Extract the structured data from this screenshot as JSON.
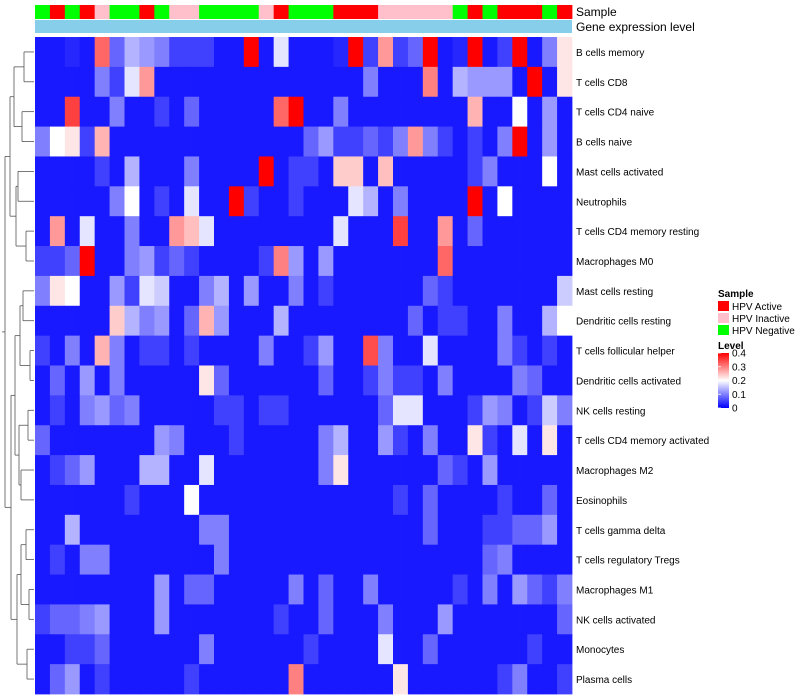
{
  "chart_data": {
    "type": "heatmap",
    "annotation_labels": {
      "sample": "Sample",
      "expression": "Gene expression level"
    },
    "legend": {
      "sample_title": "Sample",
      "sample_entries": [
        {
          "label": "HPV Active",
          "color": "#ff0000"
        },
        {
          "label": "HPV Inactive",
          "color": "#ffc0cb"
        },
        {
          "label": "HPV Negative",
          "color": "#00ff00"
        }
      ],
      "level_title": "Level",
      "level_ticks": [
        "0.4",
        "0.3",
        "0.2",
        "0.1",
        "0"
      ],
      "level_tick_values": [
        0.4,
        0.3,
        0.2,
        0.1,
        0
      ]
    },
    "color_scale": {
      "low": "#0000ff",
      "mid": "#ffffff",
      "high": "#ff0000",
      "min": 0,
      "mid_value": 0.2,
      "max": 0.4
    },
    "expression_bar_color": "#87ceeb",
    "sample_groups": [
      "N",
      "A",
      "N",
      "A",
      "P",
      "N",
      "N",
      "A",
      "N",
      "P",
      "P",
      "N",
      "N",
      "N",
      "N",
      "P",
      "A",
      "N",
      "N",
      "N",
      "A",
      "A",
      "A",
      "P",
      "P",
      "P",
      "P",
      "P",
      "N",
      "A",
      "N",
      "A",
      "A",
      "A",
      "N",
      "A"
    ],
    "group_colors": {
      "A": "#ff0000",
      "P": "#ffc0cb",
      "N": "#00ff00"
    },
    "rows": [
      {
        "label": "B cells memory",
        "values": [
          0.02,
          0.02,
          0.03,
          0.02,
          0.32,
          0.08,
          0.14,
          0.12,
          0.1,
          0.05,
          0.05,
          0.05,
          0.02,
          0.02,
          0.4,
          0.02,
          0.18,
          0.02,
          0.02,
          0.02,
          0.03,
          0.4,
          0.05,
          0.28,
          0.05,
          0.08,
          0.4,
          0.02,
          0.03,
          0.4,
          0.02,
          0.05,
          0.4,
          0.02,
          0.1,
          0.22
        ]
      },
      {
        "label": "T cells CD8",
        "values": [
          0.02,
          0.02,
          0.02,
          0.02,
          0.1,
          0.05,
          0.18,
          0.28,
          0.02,
          0.02,
          0.02,
          0.02,
          0.02,
          0.02,
          0.02,
          0.02,
          0.02,
          0.02,
          0.02,
          0.02,
          0.02,
          0.02,
          0.1,
          0.02,
          0.02,
          0.02,
          0.3,
          0.02,
          0.14,
          0.12,
          0.12,
          0.12,
          0.02,
          0.4,
          0.02,
          0.22
        ]
      },
      {
        "label": "T cells CD4 naive",
        "values": [
          0.02,
          0.02,
          0.35,
          0.02,
          0.02,
          0.1,
          0.02,
          0.02,
          0.05,
          0.02,
          0.08,
          0.02,
          0.02,
          0.02,
          0.02,
          0.02,
          0.32,
          0.4,
          0.02,
          0.02,
          0.1,
          0.02,
          0.02,
          0.02,
          0.02,
          0.02,
          0.02,
          0.02,
          0.02,
          0.26,
          0.02,
          0.02,
          0.2,
          0.02,
          0.12,
          0.02
        ]
      },
      {
        "label": "B cells naive",
        "values": [
          0.1,
          0.2,
          0.22,
          0.05,
          0.26,
          0.02,
          0.02,
          0.02,
          0.02,
          0.02,
          0.02,
          0.02,
          0.02,
          0.02,
          0.02,
          0.02,
          0.02,
          0.02,
          0.08,
          0.12,
          0.05,
          0.05,
          0.08,
          0.05,
          0.1,
          0.28,
          0.1,
          0.05,
          0.02,
          0.05,
          0.02,
          0.1,
          0.4,
          0.02,
          0.12,
          0.02
        ]
      },
      {
        "label": "Mast cells activated",
        "values": [
          0.02,
          0.02,
          0.02,
          0.02,
          0.05,
          0.02,
          0.14,
          0.02,
          0.02,
          0.02,
          0.1,
          0.02,
          0.02,
          0.02,
          0.02,
          0.4,
          0.02,
          0.05,
          0.05,
          0.02,
          0.24,
          0.24,
          0.02,
          0.25,
          0.02,
          0.02,
          0.02,
          0.02,
          0.02,
          0.05,
          0.1,
          0.02,
          0.02,
          0.02,
          0.2,
          0.02
        ]
      },
      {
        "label": "Neutrophils",
        "values": [
          0.02,
          0.02,
          0.02,
          0.02,
          0.02,
          0.1,
          0.2,
          0.02,
          0.05,
          0.02,
          0.18,
          0.02,
          0.02,
          0.4,
          0.05,
          0.02,
          0.02,
          0.05,
          0.02,
          0.02,
          0.02,
          0.18,
          0.14,
          0.02,
          0.1,
          0.02,
          0.02,
          0.02,
          0.02,
          0.4,
          0.02,
          0.2,
          0.02,
          0.02,
          0.02,
          0.02
        ]
      },
      {
        "label": "T cells CD4 memory resting",
        "values": [
          0.02,
          0.28,
          0.02,
          0.18,
          0.02,
          0.02,
          0.1,
          0.02,
          0.02,
          0.28,
          0.25,
          0.18,
          0.02,
          0.02,
          0.02,
          0.02,
          0.02,
          0.02,
          0.02,
          0.02,
          0.18,
          0.02,
          0.02,
          0.02,
          0.35,
          0.02,
          0.02,
          0.28,
          0.02,
          0.08,
          0.02,
          0.02,
          0.02,
          0.02,
          0.02,
          0.02
        ]
      },
      {
        "label": "Macrophages M0",
        "values": [
          0.05,
          0.05,
          0.08,
          0.4,
          0.02,
          0.02,
          0.1,
          0.12,
          0.05,
          0.08,
          0.05,
          0.02,
          0.02,
          0.02,
          0.02,
          0.05,
          0.3,
          0.12,
          0.02,
          0.12,
          0.02,
          0.02,
          0.02,
          0.02,
          0.02,
          0.02,
          0.02,
          0.32,
          0.02,
          0.02,
          0.02,
          0.02,
          0.02,
          0.02,
          0.02,
          0.02
        ]
      },
      {
        "label": "Mast cells resting",
        "values": [
          0.1,
          0.22,
          0.2,
          0.02,
          0.02,
          0.12,
          0.05,
          0.18,
          0.16,
          0.02,
          0.02,
          0.1,
          0.14,
          0.02,
          0.12,
          0.02,
          0.02,
          0.1,
          0.02,
          0.05,
          0.02,
          0.02,
          0.02,
          0.02,
          0.02,
          0.02,
          0.08,
          0.05,
          0.02,
          0.02,
          0.02,
          0.02,
          0.02,
          0.02,
          0.02,
          0.16
        ]
      },
      {
        "label": "Dendritic cells resting",
        "values": [
          0.02,
          0.02,
          0.02,
          0.02,
          0.02,
          0.24,
          0.14,
          0.1,
          0.12,
          0.02,
          0.08,
          0.26,
          0.12,
          0.02,
          0.02,
          0.02,
          0.14,
          0.02,
          0.02,
          0.02,
          0.02,
          0.02,
          0.02,
          0.02,
          0.02,
          0.08,
          0.02,
          0.05,
          0.05,
          0.02,
          0.02,
          0.1,
          0.02,
          0.02,
          0.14,
          0.2
        ]
      },
      {
        "label": "T cells follicular helper",
        "values": [
          0.05,
          0.02,
          0.1,
          0.02,
          0.26,
          0.1,
          0.02,
          0.05,
          0.05,
          0.02,
          0.05,
          0.02,
          0.02,
          0.02,
          0.02,
          0.1,
          0.02,
          0.02,
          0.05,
          0.12,
          0.02,
          0.02,
          0.34,
          0.1,
          0.02,
          0.02,
          0.18,
          0.02,
          0.02,
          0.02,
          0.02,
          0.1,
          0.05,
          0.02,
          0.05,
          0.02
        ]
      },
      {
        "label": "Dendritic cells activated",
        "values": [
          0.02,
          0.08,
          0.02,
          0.12,
          0.02,
          0.1,
          0.02,
          0.02,
          0.02,
          0.02,
          0.02,
          0.22,
          0.08,
          0.02,
          0.02,
          0.02,
          0.02,
          0.02,
          0.02,
          0.08,
          0.02,
          0.02,
          0.05,
          0.1,
          0.05,
          0.05,
          0.02,
          0.1,
          0.02,
          0.02,
          0.02,
          0.02,
          0.1,
          0.08,
          0.02,
          0.02
        ]
      },
      {
        "label": "NK cells resting",
        "values": [
          0.02,
          0.05,
          0.02,
          0.1,
          0.12,
          0.08,
          0.1,
          0.02,
          0.02,
          0.02,
          0.02,
          0.02,
          0.05,
          0.05,
          0.02,
          0.05,
          0.05,
          0.02,
          0.02,
          0.02,
          0.02,
          0.02,
          0.02,
          0.08,
          0.18,
          0.18,
          0.02,
          0.02,
          0.02,
          0.05,
          0.12,
          0.1,
          0.02,
          0.05,
          0.16,
          0.1
        ]
      },
      {
        "label": "T cells CD4 memory activated",
        "values": [
          0.08,
          0.02,
          0.02,
          0.02,
          0.02,
          0.02,
          0.02,
          0.02,
          0.12,
          0.1,
          0.02,
          0.02,
          0.02,
          0.05,
          0.02,
          0.02,
          0.02,
          0.02,
          0.02,
          0.1,
          0.14,
          0.02,
          0.02,
          0.12,
          0.05,
          0.02,
          0.1,
          0.02,
          0.02,
          0.22,
          0.05,
          0.02,
          0.18,
          0.02,
          0.22,
          0.02
        ]
      },
      {
        "label": "Macrophages M2",
        "values": [
          0.02,
          0.05,
          0.08,
          0.12,
          0.02,
          0.02,
          0.02,
          0.14,
          0.14,
          0.02,
          0.02,
          0.18,
          0.02,
          0.02,
          0.02,
          0.02,
          0.02,
          0.02,
          0.02,
          0.1,
          0.22,
          0.02,
          0.02,
          0.02,
          0.02,
          0.02,
          0.02,
          0.08,
          0.05,
          0.02,
          0.12,
          0.02,
          0.02,
          0.02,
          0.02,
          0.02
        ]
      },
      {
        "label": "Eosinophils",
        "values": [
          0.02,
          0.02,
          0.02,
          0.02,
          0.02,
          0.02,
          0.05,
          0.02,
          0.02,
          0.02,
          0.2,
          0.02,
          0.02,
          0.02,
          0.02,
          0.02,
          0.02,
          0.02,
          0.02,
          0.02,
          0.02,
          0.02,
          0.02,
          0.02,
          0.05,
          0.02,
          0.08,
          0.02,
          0.02,
          0.02,
          0.02,
          0.05,
          0.02,
          0.02,
          0.08,
          0.02
        ]
      },
      {
        "label": "T cells gamma delta",
        "values": [
          0.02,
          0.02,
          0.14,
          0.02,
          0.02,
          0.02,
          0.02,
          0.02,
          0.02,
          0.02,
          0.02,
          0.1,
          0.1,
          0.02,
          0.02,
          0.02,
          0.02,
          0.02,
          0.02,
          0.02,
          0.02,
          0.02,
          0.02,
          0.02,
          0.02,
          0.02,
          0.08,
          0.02,
          0.02,
          0.02,
          0.05,
          0.05,
          0.08,
          0.08,
          0.12,
          0.02
        ]
      },
      {
        "label": "T cells regulatory  Tregs",
        "values": [
          0.02,
          0.05,
          0.02,
          0.1,
          0.1,
          0.02,
          0.02,
          0.02,
          0.02,
          0.02,
          0.02,
          0.02,
          0.1,
          0.02,
          0.02,
          0.02,
          0.02,
          0.02,
          0.02,
          0.02,
          0.02,
          0.02,
          0.02,
          0.02,
          0.02,
          0.02,
          0.02,
          0.02,
          0.02,
          0.02,
          0.08,
          0.1,
          0.02,
          0.02,
          0.02,
          0.02
        ]
      },
      {
        "label": "Macrophages M1",
        "values": [
          0.02,
          0.02,
          0.02,
          0.02,
          0.02,
          0.02,
          0.02,
          0.02,
          0.12,
          0.02,
          0.08,
          0.08,
          0.02,
          0.02,
          0.02,
          0.02,
          0.02,
          0.1,
          0.02,
          0.08,
          0.02,
          0.02,
          0.1,
          0.02,
          0.02,
          0.02,
          0.02,
          0.02,
          0.05,
          0.02,
          0.1,
          0.02,
          0.12,
          0.08,
          0.05,
          0.1
        ]
      },
      {
        "label": "NK cells activated",
        "values": [
          0.05,
          0.08,
          0.08,
          0.1,
          0.12,
          0.02,
          0.02,
          0.02,
          0.12,
          0.02,
          0.02,
          0.02,
          0.02,
          0.02,
          0.02,
          0.02,
          0.05,
          0.02,
          0.02,
          0.08,
          0.02,
          0.02,
          0.02,
          0.1,
          0.02,
          0.02,
          0.02,
          0.12,
          0.02,
          0.02,
          0.02,
          0.02,
          0.02,
          0.02,
          0.02,
          0.08
        ]
      },
      {
        "label": "Monocytes",
        "values": [
          0.02,
          0.02,
          0.05,
          0.05,
          0.08,
          0.02,
          0.02,
          0.02,
          0.02,
          0.02,
          0.02,
          0.1,
          0.02,
          0.02,
          0.02,
          0.02,
          0.02,
          0.02,
          0.05,
          0.02,
          0.02,
          0.02,
          0.02,
          0.18,
          0.02,
          0.02,
          0.08,
          0.02,
          0.02,
          0.02,
          0.02,
          0.02,
          0.02,
          0.05,
          0.02,
          0.02
        ]
      },
      {
        "label": "Plasma cells",
        "values": [
          0.02,
          0.08,
          0.12,
          0.02,
          0.05,
          0.02,
          0.02,
          0.02,
          0.02,
          0.02,
          0.05,
          0.02,
          0.02,
          0.02,
          0.02,
          0.02,
          0.02,
          0.3,
          0.02,
          0.02,
          0.02,
          0.02,
          0.02,
          0.02,
          0.22,
          0.02,
          0.02,
          0.02,
          0.02,
          0.02,
          0.02,
          0.05,
          0.1,
          0.02,
          0.02,
          0.05
        ]
      }
    ],
    "dendrogram_pairs": [
      [
        0,
        1
      ],
      [
        2,
        3
      ],
      [
        4,
        5
      ],
      [
        6,
        7
      ],
      [
        8,
        9
      ],
      [
        10,
        11
      ],
      [
        12,
        13
      ],
      [
        14,
        15
      ],
      [
        16,
        17
      ],
      [
        18,
        19
      ],
      [
        20,
        21
      ]
    ]
  }
}
